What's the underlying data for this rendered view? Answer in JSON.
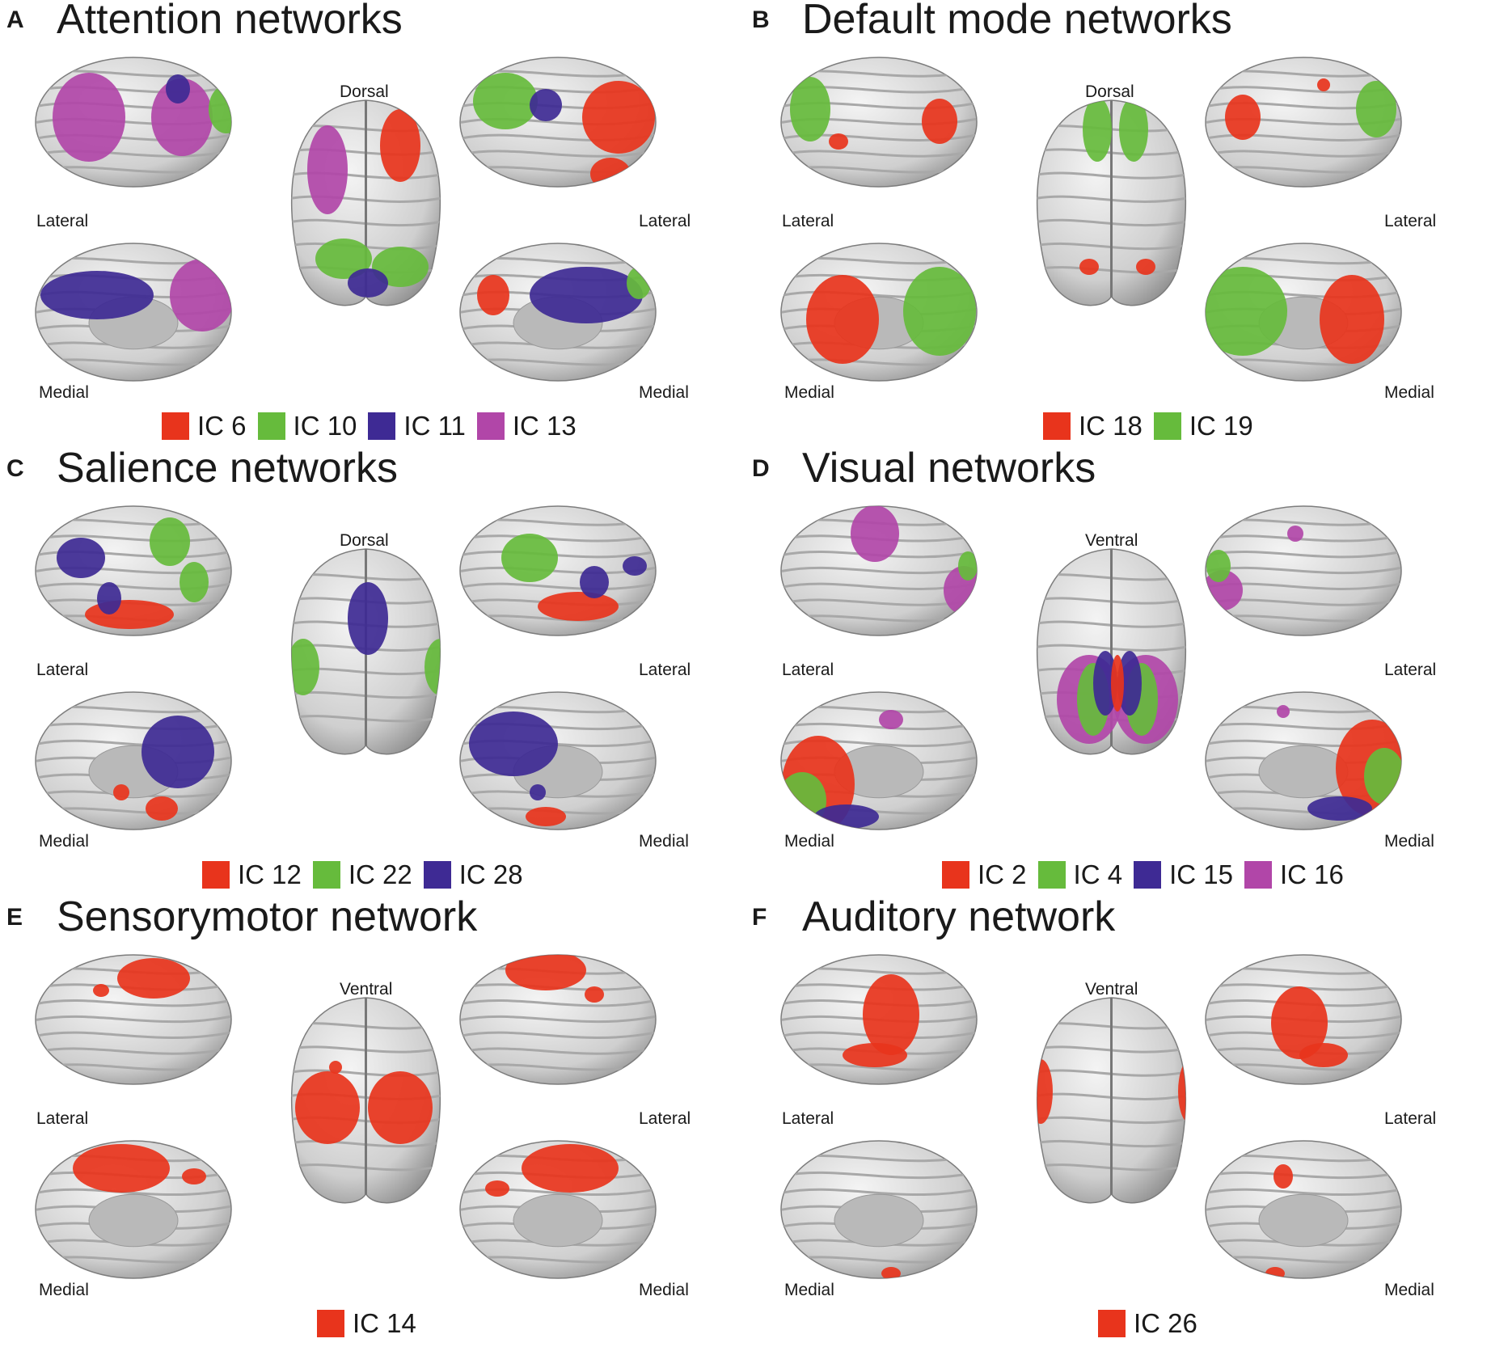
{
  "colors": {
    "red": "#e8341c",
    "green": "#66bb3c",
    "blue": "#3e2a94",
    "purple": "#b146a8",
    "brain": "#cfcfcf",
    "medial_wall": "#b9b9b9"
  },
  "panels": [
    {
      "letter": "A",
      "title": "Attention networks",
      "top_view_label": "Dorsal",
      "lateral_label_left": "Lateral",
      "lateral_label_right": "Lateral",
      "medial_label_left": "Medial",
      "medial_label_right": "Medial",
      "legend": [
        {
          "label": "IC 6",
          "color": "red"
        },
        {
          "label": "IC 10",
          "color": "green"
        },
        {
          "label": "IC 11",
          "color": "blue"
        },
        {
          "label": "IC 13",
          "color": "purple"
        }
      ]
    },
    {
      "letter": "B",
      "title": "Default mode networks",
      "top_view_label": "Dorsal",
      "lateral_label_left": "Lateral",
      "lateral_label_right": "Lateral",
      "medial_label_left": "Medial",
      "medial_label_right": "Medial",
      "legend": [
        {
          "label": "IC 18",
          "color": "red"
        },
        {
          "label": "IC 19",
          "color": "green"
        }
      ]
    },
    {
      "letter": "C",
      "title": "Salience networks",
      "top_view_label": "Dorsal",
      "lateral_label_left": "Lateral",
      "lateral_label_right": "Lateral",
      "medial_label_left": "Medial",
      "medial_label_right": "Medial",
      "legend": [
        {
          "label": "IC 12",
          "color": "red"
        },
        {
          "label": "IC 22",
          "color": "green"
        },
        {
          "label": "IC 28",
          "color": "blue"
        }
      ]
    },
    {
      "letter": "D",
      "title": "Visual networks",
      "top_view_label": "Ventral",
      "lateral_label_left": "Lateral",
      "lateral_label_right": "Lateral",
      "medial_label_left": "Medial",
      "medial_label_right": "Medial",
      "legend": [
        {
          "label": "IC 2",
          "color": "red"
        },
        {
          "label": "IC 4",
          "color": "green"
        },
        {
          "label": "IC 15",
          "color": "blue"
        },
        {
          "label": "IC 16",
          "color": "purple"
        }
      ]
    },
    {
      "letter": "E",
      "title": "Sensorymotor network",
      "top_view_label": "Ventral",
      "lateral_label_left": "Lateral",
      "lateral_label_right": "Lateral",
      "medial_label_left": "Medial",
      "medial_label_right": "Medial",
      "legend": [
        {
          "label": "IC 14",
          "color": "red"
        }
      ]
    },
    {
      "letter": "F",
      "title": "Auditory network",
      "top_view_label": "Ventral",
      "lateral_label_left": "Lateral",
      "lateral_label_right": "Lateral",
      "medial_label_left": "Medial",
      "medial_label_right": "Medial",
      "legend": [
        {
          "label": "IC 26",
          "color": "red"
        }
      ]
    }
  ]
}
